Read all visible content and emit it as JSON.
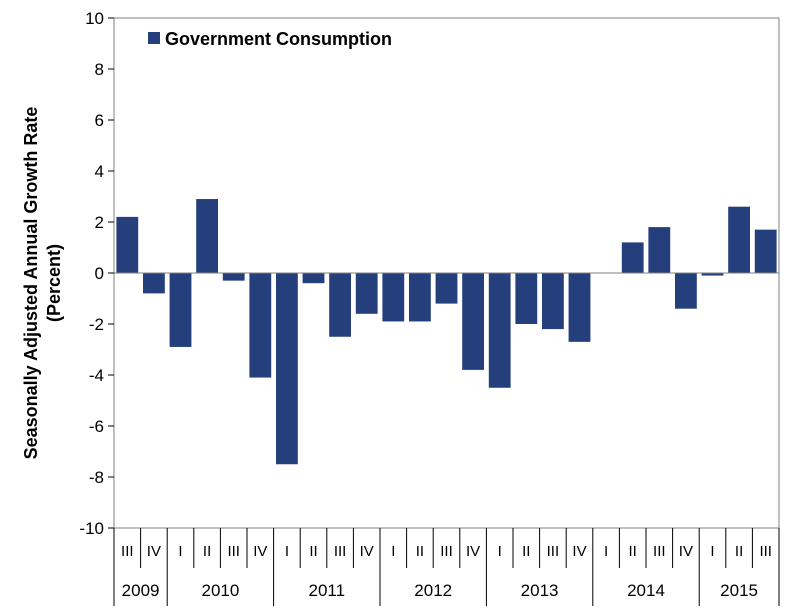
{
  "chart_data": {
    "type": "bar",
    "ylabel_line1": "Seasonally Adjusted Annual Growth Rate",
    "ylabel_line2": "(Percent)",
    "ylim": [
      -10,
      10
    ],
    "yticks": [
      "-10",
      "-8",
      "-6",
      "-4",
      "-2",
      "0",
      "2",
      "4",
      "6",
      "8",
      "10"
    ],
    "legend_position": "top-left",
    "grid": false,
    "bar_color": "#253f7c",
    "categories": [
      "III",
      "IV",
      "I",
      "II",
      "III",
      "IV",
      "I",
      "II",
      "III",
      "IV",
      "I",
      "II",
      "III",
      "IV",
      "I",
      "II",
      "III",
      "IV",
      "I",
      "II",
      "III",
      "IV",
      "I",
      "II",
      "III"
    ],
    "years": [
      {
        "label": "2009",
        "count": 2
      },
      {
        "label": "2010",
        "count": 4
      },
      {
        "label": "2011",
        "count": 4
      },
      {
        "label": "2012",
        "count": 4
      },
      {
        "label": "2013",
        "count": 4
      },
      {
        "label": "2014",
        "count": 4
      },
      {
        "label": "2015",
        "count": 3
      }
    ],
    "series": [
      {
        "name": "Government Consumption",
        "values": [
          2.2,
          -0.8,
          -2.9,
          2.9,
          -0.3,
          -4.1,
          -7.5,
          -0.4,
          -2.5,
          -1.6,
          -1.9,
          -1.9,
          -1.2,
          -3.8,
          -4.5,
          -2.0,
          -2.2,
          -2.7,
          0.0,
          1.2,
          1.8,
          -1.4,
          -0.1,
          2.6,
          1.7
        ]
      }
    ]
  }
}
